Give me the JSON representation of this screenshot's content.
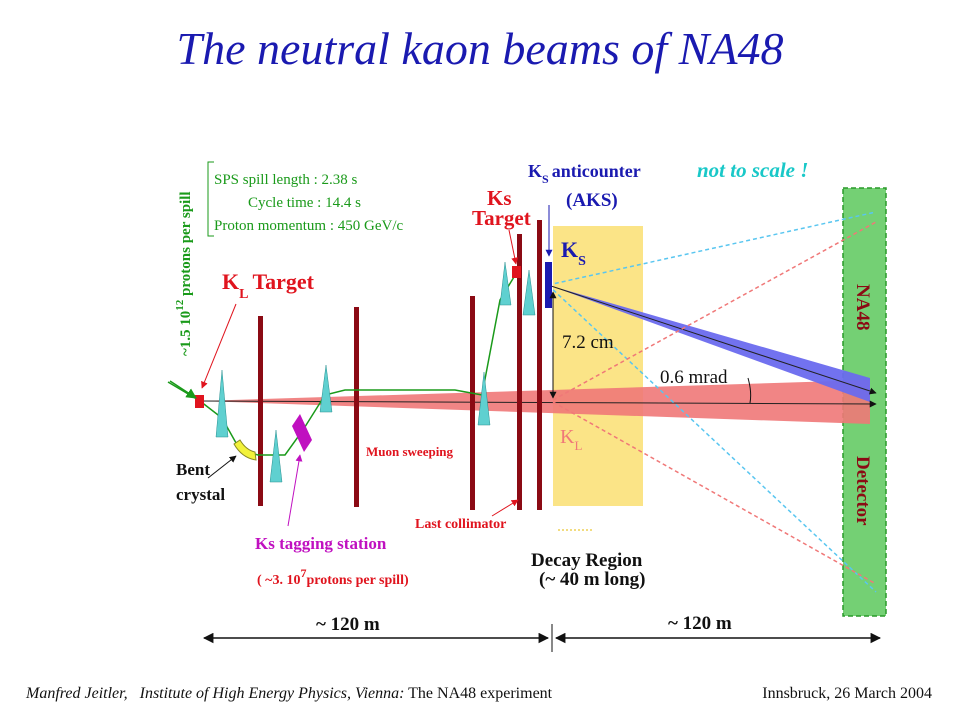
{
  "title": "The neutral kaon beams of  NA48",
  "footer": {
    "author": "Manfred Jeitler,",
    "institute": "Institute of High Energy Physics, Vienna:",
    "talk": "The NA48 experiment",
    "venue": "Innsbruck, 26 March 2004"
  },
  "diagram": {
    "spill_info": {
      "spill_length": "SPS spill length : 2.38 s",
      "cycle_time": "Cycle time : 14.4 s",
      "proton_momentum": "Proton momentum : 450 GeV/c"
    },
    "protons_kl": {
      "prefix": "~1.5 10",
      "exponent": "12",
      "suffix": " protons per spill"
    },
    "kl_target": {
      "k": "K",
      "sub": "L",
      "word": "Target"
    },
    "ks_target": {
      "line1": "Ks",
      "line2": "Target"
    },
    "aks": {
      "k": "K",
      "sub": "S",
      "word": "anticounter",
      "abbr": "(AKS)"
    },
    "not_to_scale": "not  to scale !",
    "ks_beam": {
      "k": "K",
      "sub": "S"
    },
    "kl_beam": {
      "k": "K",
      "sub": "L"
    },
    "separation": "7.2 cm",
    "angle": "0.6 mrad",
    "detector": {
      "top": "NA48",
      "bottom": "Detector"
    },
    "bent_crystal": {
      "line1": "Bent",
      "line2": "crystal"
    },
    "muon_sweeping": "Muon sweeping",
    "last_collimator": "Last collimator",
    "tagging_station": "Ks tagging station",
    "protons_ks": {
      "prefix": "( ~3. 10",
      "exponent": "7",
      "suffix": "protons per spill)"
    },
    "decay_region": {
      "line1": "Decay Region",
      "line2": "(~ 40 m long)"
    },
    "distance_left": "~ 120 m",
    "distance_right": "~ 120 m"
  },
  "colors": {
    "title": "#1a1ab0",
    "magnet": "#8b0a14",
    "kl_beam": "#f07878",
    "ks_beam": "#6a6aee",
    "decay_region": "#fbe487",
    "detector": "#74d074",
    "label_red": "#e0141e",
    "label_green": "#1a9a1a",
    "label_magenta": "#c010c0",
    "label_cyan": "#19c8c8"
  }
}
